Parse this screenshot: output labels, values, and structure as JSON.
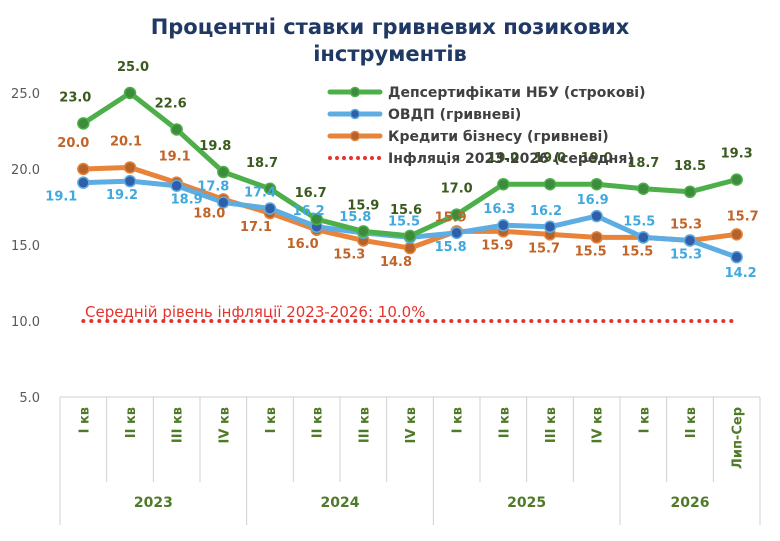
{
  "chart_data": {
    "type": "line",
    "title": "Процентні ставки гривневих позикових інструментів",
    "categories": [
      "I кв",
      "II кв",
      "III кв",
      "IV кв",
      "I кв",
      "II кв",
      "III кв",
      "IV кв",
      "I кв",
      "II кв",
      "III кв",
      "IV кв",
      "I кв",
      "II кв",
      "Лип-Сер"
    ],
    "year_groups": [
      {
        "label": "2023",
        "count": 4
      },
      {
        "label": "2024",
        "count": 4
      },
      {
        "label": "2025",
        "count": 4
      },
      {
        "label": "2026",
        "count": 3
      }
    ],
    "y_ticks": [
      "5.0",
      "10.0",
      "15.0",
      "20.0",
      "25.0"
    ],
    "ylim": [
      5,
      27.5
    ],
    "grid": false,
    "legend_position": "top-right",
    "series": [
      {
        "name": "Депсертифікати НБУ (строкові)",
        "color": "#4daf4a",
        "marker_color": "#3d8b3d",
        "label_color": "#3a5a1f",
        "values": [
          23.0,
          25.0,
          22.6,
          19.8,
          18.7,
          16.7,
          15.9,
          15.6,
          17.0,
          19.0,
          19.0,
          19.0,
          18.7,
          18.5,
          19.3
        ],
        "labels": [
          "23.0",
          "25.0",
          "22.6",
          "19.8",
          "18.7",
          "16.7",
          "15.9",
          "15.6",
          "17.0",
          "19.0",
          "19.0",
          "19.0",
          "18.7",
          "18.5",
          "19.3"
        ]
      },
      {
        "name": "ОВДП (гривневі)",
        "color": "#5dade2",
        "marker_color": "#2e5fa8",
        "label_color": "#3fa9e0",
        "values": [
          19.1,
          19.2,
          18.9,
          17.8,
          17.4,
          16.2,
          15.8,
          15.5,
          15.8,
          16.3,
          16.2,
          16.9,
          15.5,
          15.3,
          14.2
        ],
        "labels": [
          "19.1",
          "19.2",
          "18.9",
          "17.8",
          "17.4",
          "16.2",
          "15.8",
          "15.5",
          "15.8",
          "16.3",
          "16.2",
          "16.9",
          "15.5",
          "15.3",
          "14.2"
        ]
      },
      {
        "name": "Кредити бізнесу (гривневі)",
        "color": "#e8833a",
        "marker_color": "#b5632a",
        "label_color": "#c0642a",
        "values": [
          20.0,
          20.1,
          19.1,
          18.0,
          17.1,
          16.0,
          15.3,
          14.8,
          15.9,
          15.9,
          15.7,
          15.5,
          15.5,
          15.3,
          15.7
        ],
        "labels": [
          "20.0",
          "20.1",
          "19.1",
          "18.0",
          "17.1",
          "16.0",
          "15.3",
          "14.8",
          "15.9",
          "15.9",
          "15.7",
          "15.5",
          "15.5",
          "15.3",
          "15.7"
        ]
      },
      {
        "name": "Інфляція 2023-2026 (середня)",
        "color": "#e6322c",
        "style": "dotted",
        "values": [
          10.0,
          10.0,
          10.0,
          10.0,
          10.0,
          10.0,
          10.0,
          10.0,
          10.0,
          10.0,
          10.0,
          10.0,
          10.0,
          10.0,
          10.0
        ]
      }
    ],
    "annotation": "Середній рівень інфляції 2023-2026: 10.0%"
  }
}
